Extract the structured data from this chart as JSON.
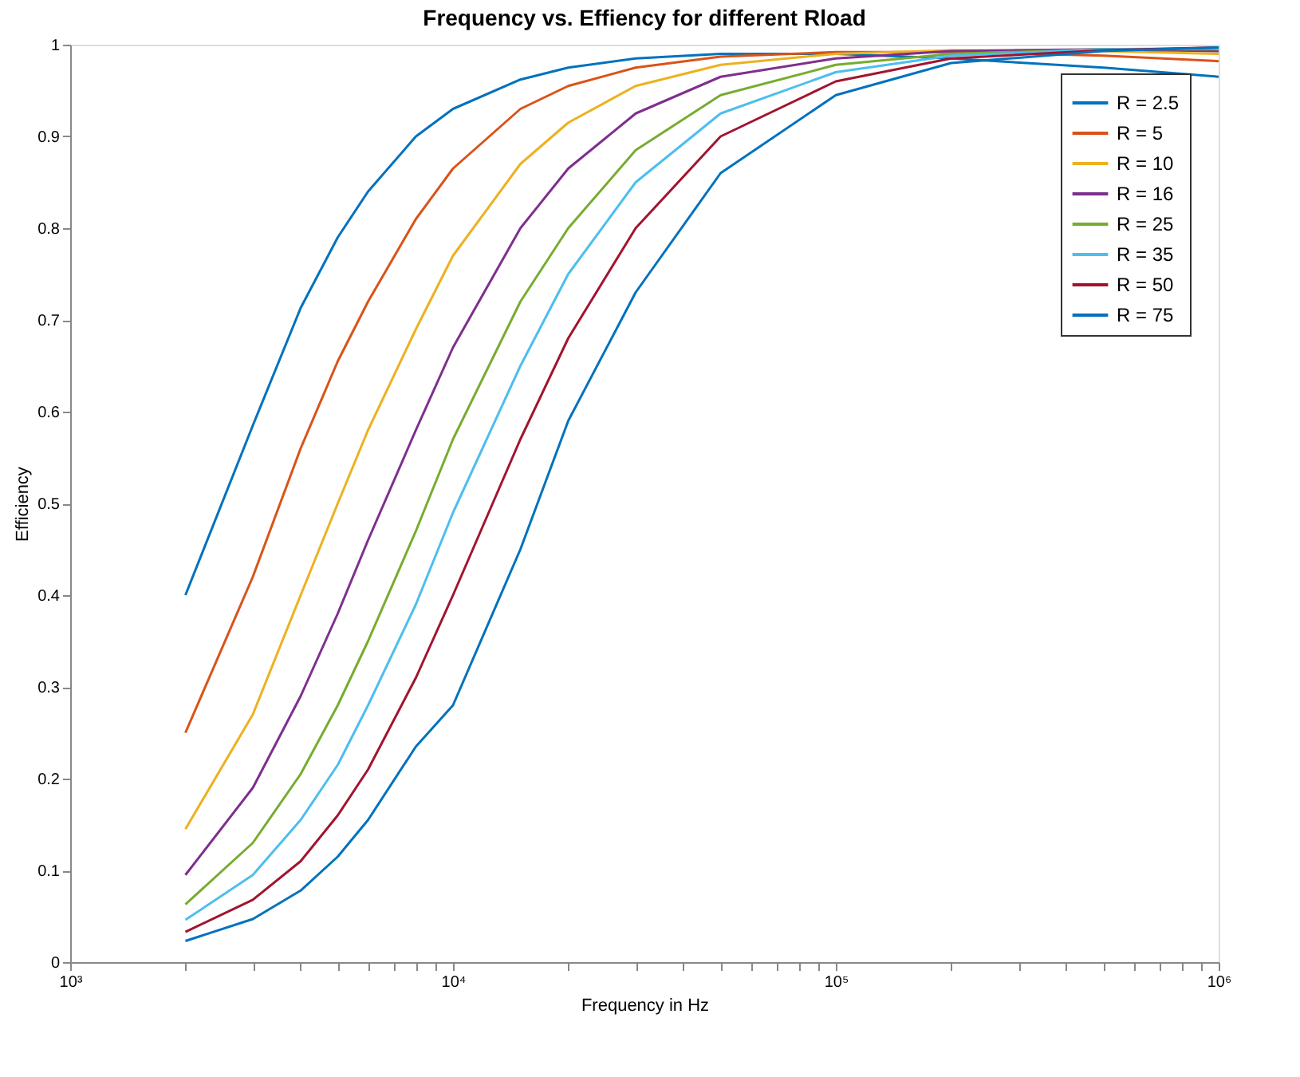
{
  "chart_data": {
    "type": "line",
    "title": "Frequency vs. Effiency for different Rload",
    "xlabel": "Frequency in Hz",
    "ylabel": "Efficiency",
    "x": [
      2000,
      3000,
      4000,
      5000,
      6000,
      8000,
      10000,
      15000,
      20000,
      30000,
      50000,
      100000,
      200000,
      500000,
      1000000
    ],
    "series": [
      {
        "name": "R = 2.5",
        "color": "#0072bd",
        "values": [
          0.4,
          0.585,
          0.713,
          0.79,
          0.84,
          0.9,
          0.93,
          0.962,
          0.975,
          0.985,
          0.99,
          0.99,
          0.985,
          0.975,
          0.965
        ]
      },
      {
        "name": "R = 5",
        "color": "#d95319",
        "values": [
          0.25,
          0.42,
          0.56,
          0.655,
          0.72,
          0.81,
          0.865,
          0.93,
          0.955,
          0.975,
          0.987,
          0.992,
          0.992,
          0.988,
          0.982
        ]
      },
      {
        "name": "R = 10",
        "color": "#edb120",
        "values": [
          0.145,
          0.27,
          0.4,
          0.5,
          0.58,
          0.69,
          0.77,
          0.87,
          0.915,
          0.955,
          0.978,
          0.99,
          0.994,
          0.993,
          0.99
        ]
      },
      {
        "name": "R = 16",
        "color": "#7e2f8e",
        "values": [
          0.095,
          0.19,
          0.29,
          0.38,
          0.46,
          0.58,
          0.67,
          0.8,
          0.865,
          0.925,
          0.965,
          0.985,
          0.993,
          0.995,
          0.993
        ]
      },
      {
        "name": "R = 25",
        "color": "#77ac30",
        "values": [
          0.063,
          0.13,
          0.205,
          0.28,
          0.35,
          0.47,
          0.57,
          0.72,
          0.8,
          0.885,
          0.945,
          0.978,
          0.99,
          0.995,
          0.995
        ]
      },
      {
        "name": "R = 35",
        "color": "#4dbeee",
        "values": [
          0.046,
          0.095,
          0.155,
          0.215,
          0.28,
          0.39,
          0.49,
          0.65,
          0.75,
          0.85,
          0.925,
          0.97,
          0.988,
          0.995,
          0.996
        ]
      },
      {
        "name": "R = 50",
        "color": "#a2142f",
        "values": [
          0.033,
          0.068,
          0.11,
          0.16,
          0.21,
          0.31,
          0.4,
          0.57,
          0.68,
          0.8,
          0.9,
          0.96,
          0.985,
          0.994,
          0.997
        ]
      },
      {
        "name": "R = 75",
        "color": "#0072bd",
        "values": [
          0.023,
          0.047,
          0.078,
          0.115,
          0.155,
          0.235,
          0.28,
          0.45,
          0.59,
          0.73,
          0.86,
          0.945,
          0.98,
          0.993,
          0.997
        ]
      }
    ],
    "xlim": [
      1000,
      1000000
    ],
    "ylim": [
      0,
      1
    ],
    "log": "x",
    "xticks": [
      {
        "value": 1000,
        "label": "10³"
      },
      {
        "value": 2000,
        "label": null
      },
      {
        "value": 3000,
        "label": null
      },
      {
        "value": 4000,
        "label": null
      },
      {
        "value": 5000,
        "label": null
      },
      {
        "value": 6000,
        "label": null
      },
      {
        "value": 7000,
        "label": null
      },
      {
        "value": 8000,
        "label": null
      },
      {
        "value": 9000,
        "label": null
      },
      {
        "value": 10000,
        "label": "10⁴"
      },
      {
        "value": 20000,
        "label": null
      },
      {
        "value": 30000,
        "label": null
      },
      {
        "value": 40000,
        "label": null
      },
      {
        "value": 50000,
        "label": null
      },
      {
        "value": 60000,
        "label": null
      },
      {
        "value": 70000,
        "label": null
      },
      {
        "value": 80000,
        "label": null
      },
      {
        "value": 90000,
        "label": null
      },
      {
        "value": 100000,
        "label": "10⁵"
      },
      {
        "value": 200000,
        "label": null
      },
      {
        "value": 300000,
        "label": null
      },
      {
        "value": 400000,
        "label": null
      },
      {
        "value": 500000,
        "label": null
      },
      {
        "value": 600000,
        "label": null
      },
      {
        "value": 700000,
        "label": null
      },
      {
        "value": 800000,
        "label": null
      },
      {
        "value": 900000,
        "label": null
      },
      {
        "value": 1000000,
        "label": "10⁶"
      }
    ],
    "yticks": [
      0,
      0.1,
      0.2,
      0.3,
      0.4,
      0.5,
      0.6,
      0.7,
      0.8,
      0.9,
      1
    ],
    "grid": false,
    "legend": "top right",
    "marker": "none",
    "line_style": "solid"
  }
}
